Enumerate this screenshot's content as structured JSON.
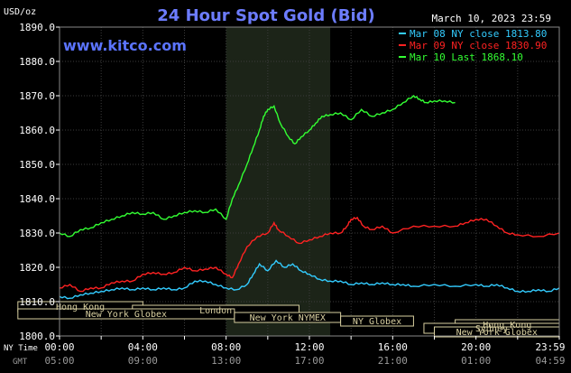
{
  "chart_data": {
    "type": "line",
    "title": "24 Hour Spot Gold (Bid)",
    "unit_label": "USD/oz",
    "datestamp": "March 10, 2023 23:59",
    "watermark": "www.kitco.com",
    "ylim": [
      1800,
      1890
    ],
    "yticks": [
      "1890.0",
      "1880.0",
      "1870.0",
      "1860.0",
      "1850.0",
      "1840.0",
      "1830.0",
      "1820.0",
      "1810.0",
      "1800.0"
    ],
    "xticks": {
      "row_label_ny": "NY Time",
      "row_label_gmt": "GMT",
      "ny": [
        "00:00",
        "04:00",
        "08:00",
        "12:00",
        "16:00",
        "20:00",
        "23:59"
      ],
      "gmt": [
        "05:00",
        "09:00",
        "13:00",
        "17:00",
        "21:00",
        "01:00",
        "04:59"
      ]
    },
    "grid": true,
    "legend_position": "top-right",
    "highlight_hours": [
      8,
      13
    ],
    "legend": [
      {
        "label": "Mar 08 NY close 1813.80",
        "color": "#33ccff"
      },
      {
        "label": "Mar 09 NY close 1830.90",
        "color": "#ff2222"
      },
      {
        "label": "Mar 10 Last 1868.10",
        "color": "#33ff33"
      }
    ],
    "sessions": [
      {
        "label": "Hong Kong",
        "start": -2,
        "end": 4
      },
      {
        "label": "London",
        "start": 3.5,
        "end": 11.5
      },
      {
        "label": "New York Globex",
        "start": -2,
        "end": 8.4
      },
      {
        "label": "New York NYMEX",
        "start": 8.4,
        "end": 13.5
      },
      {
        "label": "NY Globex",
        "start": 13.5,
        "end": 17
      },
      {
        "label": "Hong Kong",
        "start": 19,
        "end": 24
      },
      {
        "label": "Sydney",
        "start": 17.5,
        "end": 24
      },
      {
        "label": "New York Globex",
        "start": 18,
        "end": 24
      }
    ],
    "series": [
      {
        "color": "#33ccff",
        "points": [
          [
            0,
            1811.5
          ],
          [
            0.5,
            1811
          ],
          [
            1,
            1812
          ],
          [
            1.5,
            1812.5
          ],
          [
            2,
            1813
          ],
          [
            2.5,
            1813.5
          ],
          [
            3,
            1814
          ],
          [
            3.5,
            1813.5
          ],
          [
            4,
            1814
          ],
          [
            4.5,
            1813.5
          ],
          [
            5,
            1814
          ],
          [
            5.5,
            1813.5
          ],
          [
            6,
            1814
          ],
          [
            6.5,
            1816
          ],
          [
            7,
            1816
          ],
          [
            7.5,
            1815
          ],
          [
            8,
            1814
          ],
          [
            8.5,
            1813.5
          ],
          [
            9,
            1815
          ],
          [
            9.3,
            1818
          ],
          [
            9.6,
            1821
          ],
          [
            10,
            1819
          ],
          [
            10.4,
            1822
          ],
          [
            10.8,
            1820
          ],
          [
            11.2,
            1821
          ],
          [
            11.6,
            1819
          ],
          [
            12,
            1818
          ],
          [
            12.5,
            1816.5
          ],
          [
            13,
            1816
          ],
          [
            13.5,
            1816
          ],
          [
            14,
            1815
          ],
          [
            14.5,
            1815.5
          ],
          [
            15,
            1815
          ],
          [
            15.5,
            1815.5
          ],
          [
            16,
            1815
          ],
          [
            16.5,
            1815
          ],
          [
            17,
            1814.5
          ],
          [
            18,
            1815
          ],
          [
            19,
            1814.5
          ],
          [
            20,
            1815
          ],
          [
            20.5,
            1814.5
          ],
          [
            21,
            1815
          ],
          [
            21.5,
            1814
          ],
          [
            22,
            1813
          ],
          [
            22.5,
            1813
          ],
          [
            23,
            1813.5
          ],
          [
            23.5,
            1813
          ],
          [
            24,
            1814
          ]
        ]
      },
      {
        "color": "#ff2222",
        "points": [
          [
            0,
            1814
          ],
          [
            0.5,
            1815
          ],
          [
            1,
            1813
          ],
          [
            1.5,
            1814
          ],
          [
            2,
            1814
          ],
          [
            2.5,
            1815.5
          ],
          [
            3,
            1816
          ],
          [
            3.5,
            1816
          ],
          [
            4,
            1818
          ],
          [
            4.5,
            1818.5
          ],
          [
            5,
            1818
          ],
          [
            5.5,
            1818.5
          ],
          [
            6,
            1820
          ],
          [
            6.5,
            1819
          ],
          [
            7,
            1819.5
          ],
          [
            7.5,
            1820
          ],
          [
            8,
            1818
          ],
          [
            8.3,
            1817
          ],
          [
            8.6,
            1821
          ],
          [
            9,
            1826
          ],
          [
            9.5,
            1829
          ],
          [
            10,
            1830
          ],
          [
            10.3,
            1833
          ],
          [
            10.5,
            1831
          ],
          [
            11,
            1829
          ],
          [
            11.5,
            1827
          ],
          [
            12,
            1828
          ],
          [
            12.5,
            1829
          ],
          [
            13,
            1830
          ],
          [
            13.5,
            1830
          ],
          [
            13.8,
            1832
          ],
          [
            14,
            1834
          ],
          [
            14.3,
            1834.5
          ],
          [
            14.6,
            1832
          ],
          [
            15,
            1831
          ],
          [
            15.5,
            1832
          ],
          [
            16,
            1830
          ],
          [
            17,
            1832
          ],
          [
            18,
            1832
          ],
          [
            19,
            1832
          ],
          [
            19.5,
            1833
          ],
          [
            20,
            1834
          ],
          [
            20.5,
            1834
          ],
          [
            21,
            1832
          ],
          [
            21.5,
            1830
          ],
          [
            22,
            1829.5
          ],
          [
            23,
            1829
          ],
          [
            24,
            1830
          ]
        ]
      },
      {
        "color": "#33ff33",
        "points": [
          [
            0,
            1830
          ],
          [
            0.5,
            1829
          ],
          [
            1,
            1831
          ],
          [
            1.5,
            1831.5
          ],
          [
            2,
            1833
          ],
          [
            2.5,
            1834
          ],
          [
            3,
            1835
          ],
          [
            3.5,
            1836
          ],
          [
            4,
            1835.5
          ],
          [
            4.5,
            1836
          ],
          [
            5,
            1834
          ],
          [
            5.5,
            1835
          ],
          [
            6,
            1836
          ],
          [
            6.5,
            1836.5
          ],
          [
            7,
            1836
          ],
          [
            7.5,
            1837
          ],
          [
            8,
            1834
          ],
          [
            8.3,
            1840
          ],
          [
            8.6,
            1844
          ],
          [
            9,
            1850
          ],
          [
            9.3,
            1855
          ],
          [
            9.6,
            1860
          ],
          [
            9.8,
            1864
          ],
          [
            10,
            1866
          ],
          [
            10.3,
            1867
          ],
          [
            10.6,
            1862
          ],
          [
            11,
            1858
          ],
          [
            11.3,
            1856
          ],
          [
            11.6,
            1858
          ],
          [
            12,
            1860
          ],
          [
            12.3,
            1862
          ],
          [
            12.6,
            1864
          ],
          [
            13,
            1864.5
          ],
          [
            13.5,
            1865
          ],
          [
            14,
            1863
          ],
          [
            14.5,
            1866
          ],
          [
            15,
            1864
          ],
          [
            15.5,
            1865
          ],
          [
            16,
            1866
          ],
          [
            16.5,
            1868
          ],
          [
            17,
            1870
          ],
          [
            17.3,
            1869
          ],
          [
            17.6,
            1868
          ],
          [
            18,
            1868.5
          ],
          [
            18.5,
            1868.5
          ],
          [
            19,
            1868
          ]
        ]
      }
    ]
  }
}
